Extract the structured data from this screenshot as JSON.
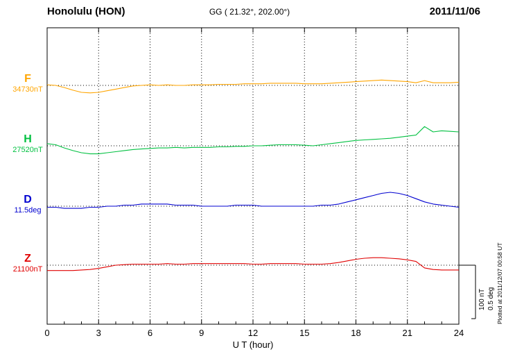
{
  "header": {
    "station": "Honolulu (HON)",
    "coords": "GG ( 21.32°, 202.00°)",
    "date": "2011/11/06"
  },
  "axis": {
    "label": "U T (hour)"
  },
  "scale": {
    "nT_label": "100 nT",
    "deg_label": "0.5 deg"
  },
  "footer": {
    "plotted_at": "Plotted at 2011/12/07 00:58 UT"
  },
  "chart_data": {
    "type": "line",
    "xlabel": "U T (hour)",
    "x_ticks": [
      0,
      3,
      6,
      9,
      12,
      15,
      18,
      21,
      24
    ],
    "x_range_hours": [
      0,
      24
    ],
    "x_start_hour": 0,
    "x_step_hours": 0.5,
    "grid": "dotted vertical every 3 h, dotted horizontal baseline per channel",
    "scale_reference": {
      "nT_per_division": 100,
      "deg_per_division": 0.5
    },
    "series": [
      {
        "name": "F",
        "baseline_label": "34730nT",
        "baseline_value": 34730,
        "unit": "nT",
        "color": "#FFA500",
        "values": [
          1,
          0,
          -4,
          -9,
          -13,
          -14,
          -13,
          -10,
          -7,
          -4,
          -1,
          0,
          1,
          0,
          1,
          0,
          0,
          1,
          1,
          1,
          2,
          2,
          2,
          3,
          3,
          3,
          4,
          4,
          4,
          4,
          3,
          3,
          3,
          4,
          5,
          6,
          7,
          8,
          9,
          10,
          9,
          8,
          7,
          5,
          9,
          5,
          5,
          5,
          6
        ]
      },
      {
        "name": "H",
        "baseline_label": "27520nT",
        "baseline_value": 27520,
        "unit": "nT",
        "color": "#00C040",
        "values": [
          4,
          2,
          -4,
          -9,
          -13,
          -15,
          -15,
          -13,
          -11,
          -9,
          -7,
          -6,
          -5,
          -4,
          -4,
          -3,
          -4,
          -3,
          -3,
          -3,
          -2,
          -2,
          -1,
          -1,
          0,
          0,
          1,
          2,
          2,
          2,
          1,
          0,
          2,
          4,
          6,
          8,
          10,
          11,
          12,
          13,
          14,
          16,
          18,
          20,
          36,
          26,
          28,
          27,
          26
        ]
      },
      {
        "name": "D",
        "baseline_label": "11.5deg",
        "baseline_value": 11.5,
        "unit": "deg",
        "color": "#0000D0",
        "values": [
          -0.01,
          -0.01,
          -0.02,
          -0.02,
          -0.02,
          -0.01,
          -0.01,
          0,
          0,
          0.01,
          0.01,
          0.02,
          0.02,
          0.02,
          0.02,
          0.01,
          0.01,
          0.01,
          0,
          0,
          0,
          0,
          0.01,
          0.01,
          0.01,
          0,
          0,
          0,
          0,
          0,
          0,
          0,
          0.01,
          0.01,
          0.02,
          0.04,
          0.06,
          0.08,
          0.1,
          0.12,
          0.13,
          0.12,
          0.1,
          0.07,
          0.04,
          0.02,
          0.01,
          0,
          -0.01
        ]
      },
      {
        "name": "Z",
        "baseline_label": "21100nT",
        "baseline_value": 21100,
        "unit": "nT",
        "color": "#E00000",
        "values": [
          -10,
          -10,
          -10,
          -10,
          -9,
          -8,
          -6,
          -3,
          0,
          1,
          2,
          2,
          2,
          2,
          3,
          2,
          2,
          3,
          3,
          3,
          3,
          3,
          3,
          3,
          2,
          2,
          3,
          3,
          3,
          3,
          2,
          2,
          2,
          3,
          5,
          8,
          11,
          13,
          14,
          14,
          13,
          12,
          10,
          7,
          -5,
          -8,
          -9,
          -9,
          -9
        ]
      }
    ]
  }
}
